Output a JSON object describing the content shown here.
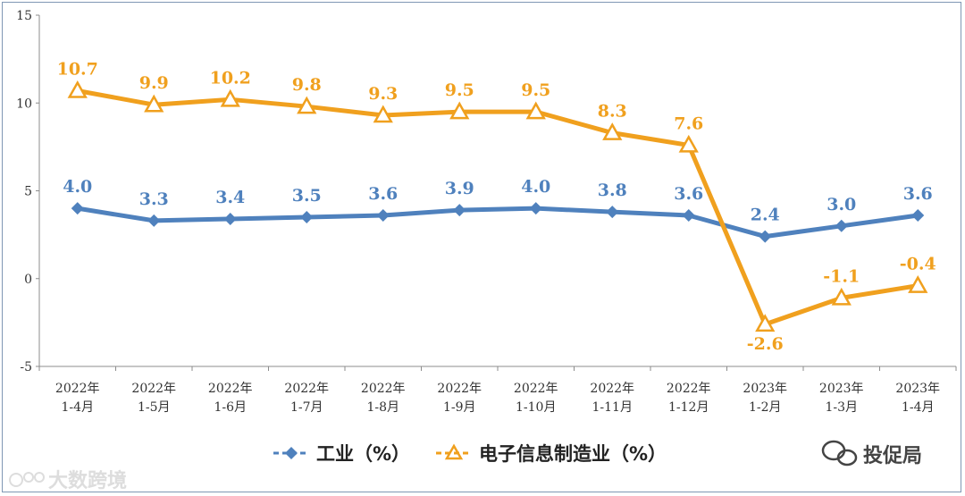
{
  "chart_data": {
    "type": "line",
    "title": "",
    "xlabel": "",
    "ylabel": "",
    "ylim": [
      -5,
      15
    ],
    "yticks": [
      -5,
      0,
      5,
      10,
      15
    ],
    "categories": [
      [
        "2022年",
        "1-4月"
      ],
      [
        "2022年",
        "1-5月"
      ],
      [
        "2022年",
        "1-6月"
      ],
      [
        "2022年",
        "1-7月"
      ],
      [
        "2022年",
        "1-8月"
      ],
      [
        "2022年",
        "1-9月"
      ],
      [
        "2022年",
        "1-10月"
      ],
      [
        "2022年",
        "1-11月"
      ],
      [
        "2022年",
        "1-12月"
      ],
      [
        "2023年",
        "1-2月"
      ],
      [
        "2023年",
        "1-3月"
      ],
      [
        "2023年",
        "1-4月"
      ]
    ],
    "series": [
      {
        "name": "工业（%）",
        "color": "#4f81bd",
        "marker": "diamond",
        "values": [
          4.0,
          3.3,
          3.4,
          3.5,
          3.6,
          3.9,
          4.0,
          3.8,
          3.6,
          2.4,
          3.0,
          3.6
        ],
        "labels": [
          "4.0",
          "3.3",
          "3.4",
          "3.5",
          "3.6",
          "3.9",
          "4.0",
          "3.8",
          "3.6",
          "2.4",
          "3.0",
          "3.6"
        ]
      },
      {
        "name": "电子信息制造业（%）",
        "color": "#f0a01e",
        "marker": "triangle",
        "values": [
          10.7,
          9.9,
          10.2,
          9.8,
          9.3,
          9.5,
          9.5,
          8.3,
          7.6,
          -2.6,
          -1.1,
          -0.4
        ],
        "labels": [
          "10.7",
          "9.9",
          "10.2",
          "9.8",
          "9.3",
          "9.5",
          "9.5",
          "8.3",
          "7.6",
          "-2.6",
          "-1.1",
          "-0.4"
        ]
      }
    ],
    "legend_position": "bottom"
  },
  "watermarks": {
    "left": "大数跨境",
    "right": "投促局"
  },
  "icons": {
    "left": "infinity-logo-icon",
    "right": "wechat-icon"
  }
}
